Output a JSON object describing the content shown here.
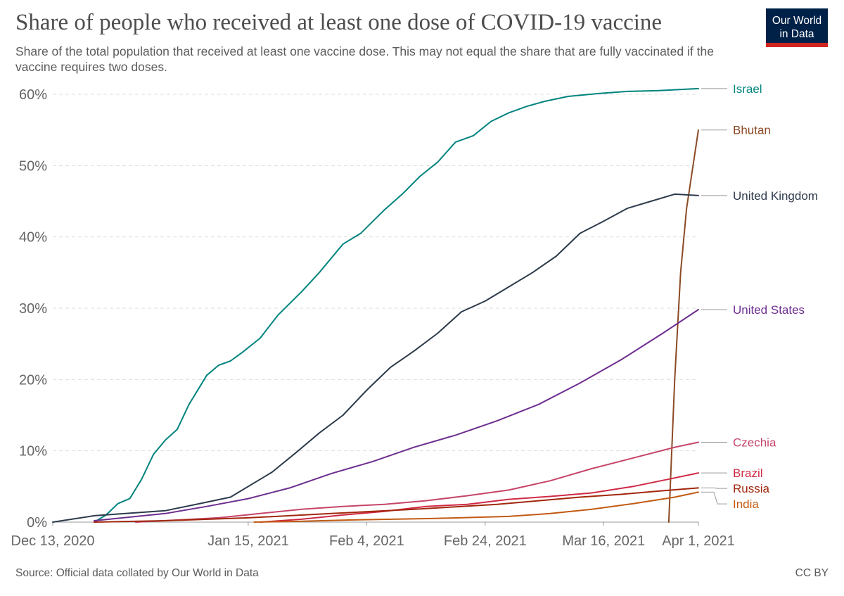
{
  "header": {
    "title": "Share of people who received at least one dose of COVID-19 vaccine",
    "subtitle": "Share of the total population that received at least one vaccine dose. This may not equal the share that are fully vaccinated if the vaccine requires two doses.",
    "logo_line1": "Our World",
    "logo_line2": "in Data"
  },
  "footer": {
    "source": "Source: Official data collated by Our World in Data",
    "license": "CC BY"
  },
  "colors": {
    "Israel": "#00847e",
    "Bhutan": "#8c4a25",
    "United Kingdom": "#2d3a4b",
    "United States": "#6d2e8f",
    "Czechia": "#c64569",
    "Brazil": "#cf2a45",
    "Russia": "#a2270d",
    "India": "#c25a12"
  },
  "chart_data": {
    "type": "line",
    "ylim": [
      0,
      60
    ],
    "xlim": [
      "2020-12-13",
      "2021-04-01"
    ],
    "y_ticks": [
      "0%",
      "10%",
      "20%",
      "30%",
      "40%",
      "50%",
      "60%"
    ],
    "x_ticks": [
      {
        "date": "2020-12-13",
        "label": "Dec 13, 2020"
      },
      {
        "date": "2021-01-15",
        "label": "Jan 15, 2021"
      },
      {
        "date": "2021-02-04",
        "label": "Feb 4, 2021"
      },
      {
        "date": "2021-02-24",
        "label": "Feb 24, 2021"
      },
      {
        "date": "2021-03-16",
        "label": "Mar 16, 2021"
      },
      {
        "date": "2021-04-01",
        "label": "Apr 1, 2021"
      }
    ],
    "grid": "horizontal dashed",
    "legend": "right, labels at line ends",
    "series": [
      {
        "name": "Israel",
        "points": [
          [
            "2020-12-20",
            0
          ],
          [
            "2020-12-22",
            1
          ],
          [
            "2020-12-24",
            2.6
          ],
          [
            "2020-12-26",
            3.3
          ],
          [
            "2020-12-28",
            6
          ],
          [
            "2020-12-30",
            9.5
          ],
          [
            "2021-01-01",
            11.5
          ],
          [
            "2021-01-03",
            13
          ],
          [
            "2021-01-05",
            16.5
          ],
          [
            "2021-01-08",
            20.6
          ],
          [
            "2021-01-10",
            22
          ],
          [
            "2021-01-12",
            22.6
          ],
          [
            "2021-01-14",
            23.8
          ],
          [
            "2021-01-17",
            25.8
          ],
          [
            "2021-01-20",
            29
          ],
          [
            "2021-01-24",
            32.3
          ],
          [
            "2021-01-27",
            35
          ],
          [
            "2021-01-31",
            39
          ],
          [
            "2021-02-03",
            40.5
          ],
          [
            "2021-02-07",
            43.8
          ],
          [
            "2021-02-10",
            46
          ],
          [
            "2021-02-13",
            48.5
          ],
          [
            "2021-02-16",
            50.5
          ],
          [
            "2021-02-19",
            53.3
          ],
          [
            "2021-02-22",
            54.2
          ],
          [
            "2021-02-25",
            56.2
          ],
          [
            "2021-02-28",
            57.4
          ],
          [
            "2021-03-03",
            58.3
          ],
          [
            "2021-03-06",
            59
          ],
          [
            "2021-03-10",
            59.7
          ],
          [
            "2021-03-15",
            60.1
          ],
          [
            "2021-03-20",
            60.4
          ],
          [
            "2021-03-25",
            60.5
          ],
          [
            "2021-04-01",
            60.8
          ]
        ]
      },
      {
        "name": "Bhutan",
        "points": [
          [
            "2021-03-27",
            0
          ],
          [
            "2021-03-28",
            20
          ],
          [
            "2021-03-29",
            35
          ],
          [
            "2021-03-30",
            44
          ],
          [
            "2021-04-01",
            55
          ]
        ]
      },
      {
        "name": "United Kingdom",
        "points": [
          [
            "2020-12-13",
            0
          ],
          [
            "2020-12-20",
            0.9
          ],
          [
            "2021-01-01",
            1.6
          ],
          [
            "2021-01-08",
            2.8
          ],
          [
            "2021-01-12",
            3.5
          ],
          [
            "2021-01-16",
            5.5
          ],
          [
            "2021-01-19",
            7
          ],
          [
            "2021-01-23",
            9.7
          ],
          [
            "2021-01-27",
            12.5
          ],
          [
            "2021-01-31",
            15
          ],
          [
            "2021-02-04",
            18.5
          ],
          [
            "2021-02-08",
            21.7
          ],
          [
            "2021-02-12",
            24
          ],
          [
            "2021-02-16",
            26.5
          ],
          [
            "2021-02-20",
            29.5
          ],
          [
            "2021-02-24",
            31
          ],
          [
            "2021-02-28",
            33
          ],
          [
            "2021-03-04",
            35
          ],
          [
            "2021-03-08",
            37.3
          ],
          [
            "2021-03-12",
            40.5
          ],
          [
            "2021-03-16",
            42.2
          ],
          [
            "2021-03-20",
            44
          ],
          [
            "2021-03-24",
            45
          ],
          [
            "2021-03-28",
            46
          ],
          [
            "2021-04-01",
            45.8
          ]
        ]
      },
      {
        "name": "United States",
        "points": [
          [
            "2020-12-20",
            0.2
          ],
          [
            "2021-01-01",
            1.2
          ],
          [
            "2021-01-08",
            2.2
          ],
          [
            "2021-01-15",
            3.3
          ],
          [
            "2021-01-22",
            4.8
          ],
          [
            "2021-01-29",
            6.8
          ],
          [
            "2021-02-05",
            8.5
          ],
          [
            "2021-02-12",
            10.5
          ],
          [
            "2021-02-19",
            12.2
          ],
          [
            "2021-02-26",
            14.2
          ],
          [
            "2021-03-05",
            16.5
          ],
          [
            "2021-03-12",
            19.5
          ],
          [
            "2021-03-19",
            22.8
          ],
          [
            "2021-03-26",
            26.5
          ],
          [
            "2021-04-01",
            29.8
          ]
        ]
      },
      {
        "name": "Czechia",
        "points": [
          [
            "2020-12-27",
            0
          ],
          [
            "2021-01-03",
            0.3
          ],
          [
            "2021-01-10",
            0.6
          ],
          [
            "2021-01-17",
            1.2
          ],
          [
            "2021-01-24",
            1.8
          ],
          [
            "2021-01-31",
            2.2
          ],
          [
            "2021-02-07",
            2.5
          ],
          [
            "2021-02-14",
            3
          ],
          [
            "2021-02-21",
            3.7
          ],
          [
            "2021-02-28",
            4.5
          ],
          [
            "2021-03-07",
            5.8
          ],
          [
            "2021-03-14",
            7.5
          ],
          [
            "2021-03-21",
            9
          ],
          [
            "2021-03-28",
            10.5
          ],
          [
            "2021-04-01",
            11.2
          ]
        ]
      },
      {
        "name": "Brazil",
        "points": [
          [
            "2021-01-17",
            0
          ],
          [
            "2021-01-24",
            0.4
          ],
          [
            "2021-01-31",
            1
          ],
          [
            "2021-02-07",
            1.5
          ],
          [
            "2021-02-14",
            2.2
          ],
          [
            "2021-02-21",
            2.5
          ],
          [
            "2021-02-28",
            3.2
          ],
          [
            "2021-03-07",
            3.6
          ],
          [
            "2021-03-14",
            4.1
          ],
          [
            "2021-03-21",
            5
          ],
          [
            "2021-03-28",
            6.2
          ],
          [
            "2021-04-01",
            6.9
          ]
        ]
      },
      {
        "name": "Russia",
        "points": [
          [
            "2020-12-20",
            0
          ],
          [
            "2021-01-01",
            0.2
          ],
          [
            "2021-01-15",
            0.6
          ],
          [
            "2021-01-29",
            1.2
          ],
          [
            "2021-02-12",
            1.8
          ],
          [
            "2021-02-26",
            2.5
          ],
          [
            "2021-03-05",
            3
          ],
          [
            "2021-03-12",
            3.5
          ],
          [
            "2021-03-19",
            3.9
          ],
          [
            "2021-03-26",
            4.4
          ],
          [
            "2021-04-01",
            4.8
          ]
        ]
      },
      {
        "name": "India",
        "points": [
          [
            "2021-01-16",
            0
          ],
          [
            "2021-01-23",
            0.1
          ],
          [
            "2021-02-01",
            0.3
          ],
          [
            "2021-02-15",
            0.5
          ],
          [
            "2021-02-28",
            0.8
          ],
          [
            "2021-03-07",
            1.2
          ],
          [
            "2021-03-14",
            1.8
          ],
          [
            "2021-03-21",
            2.6
          ],
          [
            "2021-03-28",
            3.5
          ],
          [
            "2021-04-01",
            4.2
          ]
        ]
      }
    ]
  }
}
